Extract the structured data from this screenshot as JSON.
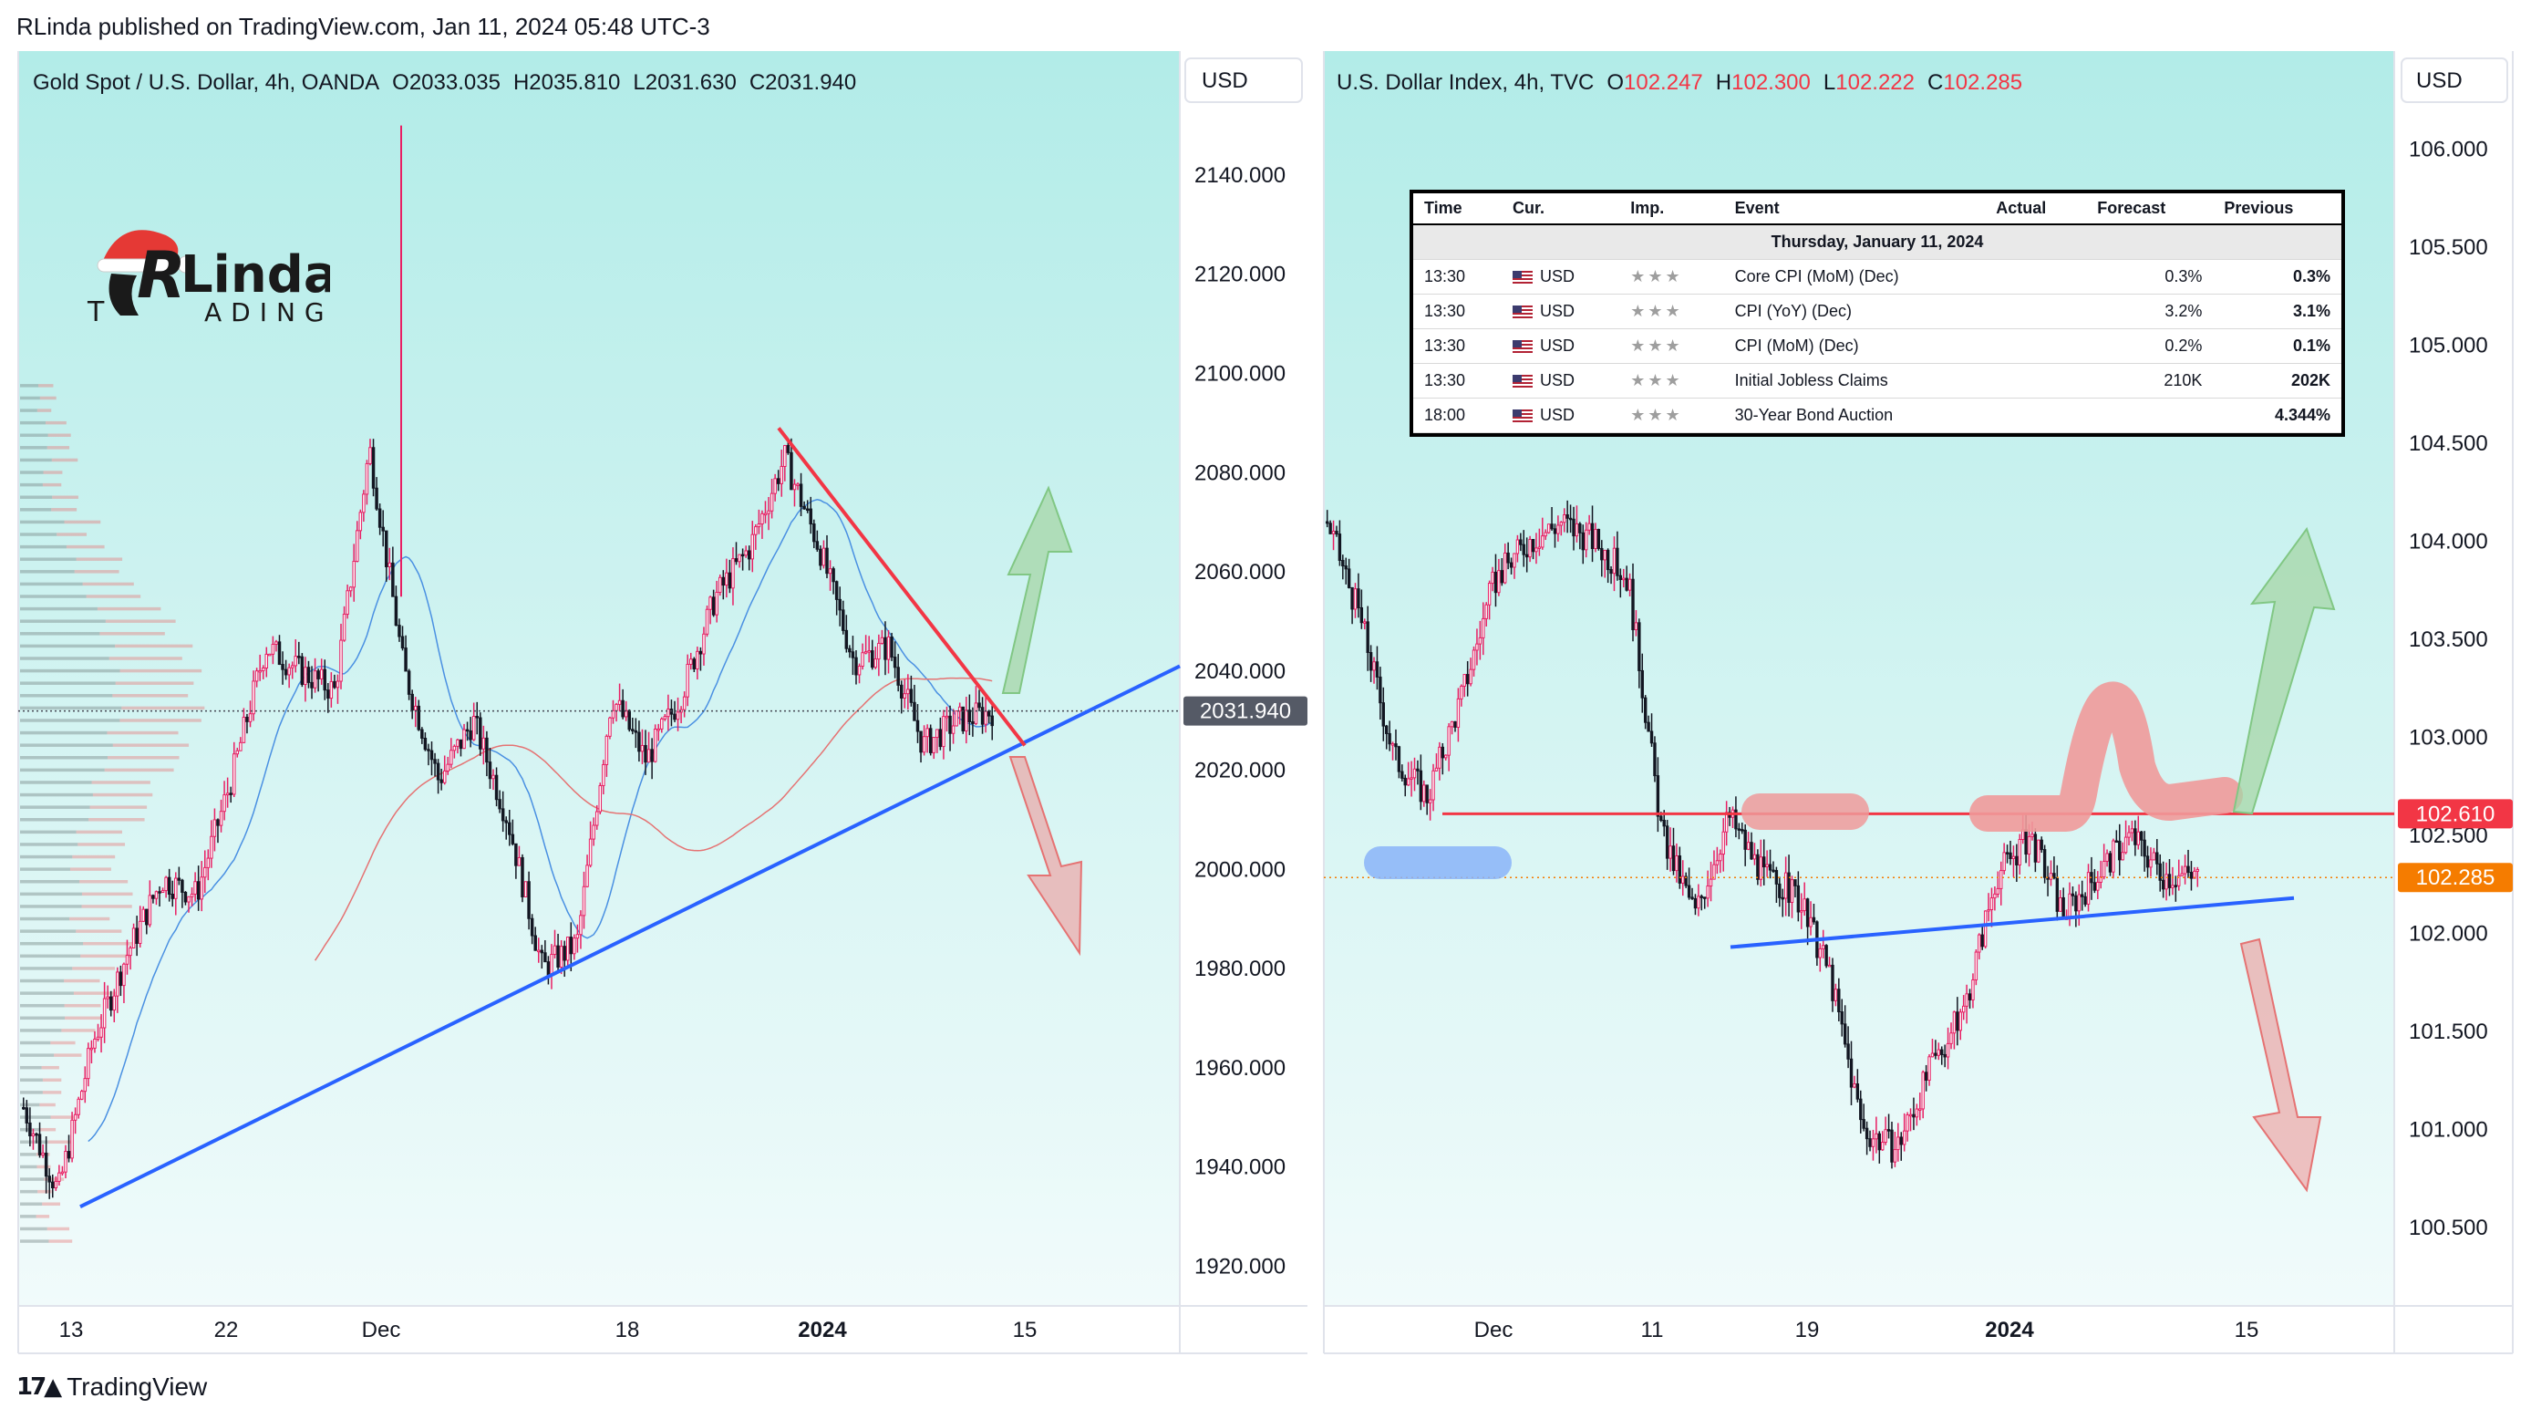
{
  "header": {
    "publish_line": "RLinda published on TradingView.com, Jan 11, 2024 05:48 UTC-3"
  },
  "footer": {
    "brand": "TradingView"
  },
  "logo": {
    "line1": "Linda",
    "line2": "ADING",
    "prefix_letter": "T"
  },
  "left_chart": {
    "title_label": "Gold Spot / U.S. Dollar, 4h, OANDA",
    "ohlc": {
      "o": "O2033.035",
      "h": "H2035.810",
      "l": "L2031.630",
      "c": "C2031.940"
    },
    "currency": "USD",
    "last_price": "2031.940",
    "y_ticks": [
      "2140.000",
      "2120.000",
      "2100.000",
      "2080.000",
      "2060.000",
      "2040.000",
      "2020.000",
      "2000.000",
      "1980.000",
      "1960.000",
      "1940.000",
      "1920.000"
    ],
    "x_ticks": [
      "13",
      "22",
      "Dec",
      "18",
      "2024",
      "15"
    ],
    "colors": {
      "background_top": "#b2ece8",
      "background_bottom": "#f1fbfb",
      "up": "#ffffff",
      "down": "#131722",
      "accent": "#e91e63",
      "trendline_blue": "#2962ff",
      "trendline_red": "#f23645"
    }
  },
  "right_chart": {
    "title_label": "U.S. Dollar Index, 4h, TVC",
    "ohlc": {
      "o_label": "O",
      "o": "102.247",
      "h_label": "H",
      "h": "102.300",
      "l_label": "L",
      "l": "102.222",
      "c_label": "C",
      "c": "102.285"
    },
    "currency": "USD",
    "resistance_price": "102.610",
    "last_price": "102.285",
    "y_ticks": [
      "106.000",
      "105.500",
      "105.000",
      "104.500",
      "104.000",
      "103.500",
      "103.000",
      "102.500",
      "102.000",
      "101.500",
      "101.000",
      "100.500"
    ],
    "x_ticks": [
      "Dec",
      "11",
      "19",
      "2024",
      "15"
    ],
    "colors": {
      "resistance": "#f23645",
      "last_price_tag": "#f57c00",
      "trendline_blue": "#2962ff"
    }
  },
  "calendar": {
    "headers": [
      "Time",
      "Cur.",
      "Imp.",
      "Event",
      "Actual",
      "Forecast",
      "Previous"
    ],
    "day": "Thursday, January 11, 2024",
    "rows": [
      {
        "time": "13:30",
        "cur": "USD",
        "imp": "★★★",
        "event": "Core CPI (MoM) (Dec)",
        "actual": "",
        "forecast": "0.3%",
        "previous": "0.3%"
      },
      {
        "time": "13:30",
        "cur": "USD",
        "imp": "★★★",
        "event": "CPI (YoY) (Dec)",
        "actual": "",
        "forecast": "3.2%",
        "previous": "3.1%"
      },
      {
        "time": "13:30",
        "cur": "USD",
        "imp": "★★★",
        "event": "CPI (MoM) (Dec)",
        "actual": "",
        "forecast": "0.2%",
        "previous": "0.1%"
      },
      {
        "time": "13:30",
        "cur": "USD",
        "imp": "★★★",
        "event": "Initial Jobless Claims",
        "actual": "",
        "forecast": "210K",
        "previous": "202K"
      },
      {
        "time": "18:00",
        "cur": "USD",
        "imp": "★★★",
        "event": "30-Year Bond Auction",
        "actual": "",
        "forecast": "",
        "previous": "4.344%"
      }
    ]
  },
  "chart_data": [
    {
      "type": "candlestick",
      "title": "Gold Spot / U.S. Dollar, 4h, OANDA",
      "ylim": [
        1912,
        2165
      ],
      "x_ticks": [
        "13",
        "22",
        "Dec",
        "18",
        "2024",
        "15"
      ],
      "y_ticks": [
        2140,
        2120,
        2100,
        2080,
        2060,
        2040,
        2020,
        2000,
        1980,
        1960,
        1940,
        1920
      ],
      "price_path_close": [
        {
          "x": "13",
          "y": 1952
        },
        {
          "x": "15",
          "y": 1935
        },
        {
          "x": "17",
          "y": 1965
        },
        {
          "x": "19",
          "y": 1983
        },
        {
          "x": "22",
          "y": 1998
        },
        {
          "x": "24",
          "y": 1995
        },
        {
          "x": "27",
          "y": 2018
        },
        {
          "x": "28",
          "y": 2045
        },
        {
          "x": "30",
          "y": 2040
        },
        {
          "x": "Dec",
          "y": 2036
        },
        {
          "x": "Dec 3",
          "y": 2085
        },
        {
          "x": "Dec 4",
          "y": 2040
        },
        {
          "x": "Dec 5",
          "y": 2018
        },
        {
          "x": "Dec 7",
          "y": 2030
        },
        {
          "x": "Dec 8",
          "y": 2010
        },
        {
          "x": "Dec 11",
          "y": 1980
        },
        {
          "x": "Dec 13",
          "y": 1985
        },
        {
          "x": "Dec 14",
          "y": 2035
        },
        {
          "x": "18",
          "y": 2022
        },
        {
          "x": "Dec 20",
          "y": 2035
        },
        {
          "x": "Dec 22",
          "y": 2055
        },
        {
          "x": "Dec 26",
          "y": 2065
        },
        {
          "x": "Dec 28",
          "y": 2083
        },
        {
          "x": "2024",
          "y": 2065
        },
        {
          "x": "Jan 3",
          "y": 2042
        },
        {
          "x": "Jan 5",
          "y": 2045
        },
        {
          "x": "Jan 8",
          "y": 2025
        },
        {
          "x": "Jan 10",
          "y": 2030
        },
        {
          "x": "Jan 11",
          "y": 2031.94
        }
      ],
      "last_bar": {
        "open": 2033.035,
        "high": 2035.81,
        "low": 2031.63,
        "close": 2031.94
      },
      "spike_high": 2150,
      "annotations": {
        "ascending_trendline": {
          "from": {
            "x": "14",
            "y": 1932
          },
          "to": {
            "x": "Jan 16",
            "y": 2041
          }
        },
        "descending_trendline": {
          "from": {
            "x": "Dec 28",
            "y": 2089
          },
          "to": {
            "x": "Jan 11",
            "y": 2025
          }
        },
        "up_arrow": "green",
        "down_arrow": "red"
      }
    },
    {
      "type": "candlestick",
      "title": "U.S. Dollar Index, 4h, TVC",
      "ylim": [
        100.1,
        106.5
      ],
      "x_ticks": [
        "Dec",
        "11",
        "19",
        "2024",
        "15"
      ],
      "y_ticks": [
        106.0,
        105.5,
        105.0,
        104.5,
        104.0,
        103.5,
        103.0,
        102.5,
        102.0,
        101.5,
        101.0,
        100.5
      ],
      "price_path_close": [
        {
          "x": "Nov 24",
          "y": 104.1
        },
        {
          "x": "Nov 27",
          "y": 103.6
        },
        {
          "x": "Nov 29",
          "y": 102.9
        },
        {
          "x": "Nov 30",
          "y": 102.7
        },
        {
          "x": "Dec",
          "y": 103.2
        },
        {
          "x": "Dec 5",
          "y": 103.8
        },
        {
          "x": "Dec 7",
          "y": 104.0
        },
        {
          "x": "11",
          "y": 104.1
        },
        {
          "x": "Dec 12",
          "y": 104.0
        },
        {
          "x": "Dec 13",
          "y": 103.8
        },
        {
          "x": "Dec 14",
          "y": 102.5
        },
        {
          "x": "Dec 15",
          "y": 102.1
        },
        {
          "x": "Dec 18",
          "y": 102.6
        },
        {
          "x": "19",
          "y": 102.3
        },
        {
          "x": "Dec 21",
          "y": 102.2
        },
        {
          "x": "Dec 22",
          "y": 101.8
        },
        {
          "x": "Dec 27",
          "y": 101.0
        },
        {
          "x": "Dec 28",
          "y": 100.9
        },
        {
          "x": "Dec 29",
          "y": 101.3
        },
        {
          "x": "2024",
          "y": 101.6
        },
        {
          "x": "Jan 2",
          "y": 102.3
        },
        {
          "x": "Jan 4",
          "y": 102.5
        },
        {
          "x": "Jan 5",
          "y": 102.1
        },
        {
          "x": "Jan 8",
          "y": 102.3
        },
        {
          "x": "Jan 9",
          "y": 102.5
        },
        {
          "x": "Jan 10",
          "y": 102.3
        },
        {
          "x": "Jan 11",
          "y": 102.285
        }
      ],
      "last_bar": {
        "open": 102.247,
        "high": 102.3,
        "low": 102.222,
        "close": 102.285
      },
      "annotations": {
        "resistance_line": 102.61,
        "ascending_trendline": {
          "from": {
            "x": "Dec 15",
            "y": 101.93
          },
          "to": {
            "x": "Jan 15",
            "y": 102.18
          }
        },
        "up_arrow": "green",
        "down_arrow": "red"
      }
    }
  ]
}
